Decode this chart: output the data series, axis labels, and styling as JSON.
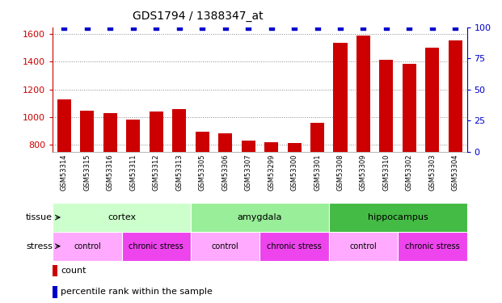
{
  "title": "GDS1794 / 1388347_at",
  "samples": [
    "GSM53314",
    "GSM53315",
    "GSM53316",
    "GSM53311",
    "GSM53312",
    "GSM53313",
    "GSM53305",
    "GSM53306",
    "GSM53307",
    "GSM53299",
    "GSM53300",
    "GSM53301",
    "GSM53308",
    "GSM53309",
    "GSM53310",
    "GSM53302",
    "GSM53303",
    "GSM53304"
  ],
  "counts": [
    1130,
    1045,
    1030,
    980,
    1040,
    1060,
    895,
    880,
    828,
    815,
    810,
    960,
    1535,
    1590,
    1415,
    1385,
    1500,
    1555
  ],
  "percentiles": [
    100,
    100,
    100,
    100,
    100,
    100,
    100,
    100,
    100,
    100,
    100,
    100,
    100,
    100,
    100,
    100,
    100,
    100
  ],
  "ylim_left": [
    750,
    1650
  ],
  "ylim_right": [
    0,
    100
  ],
  "yticks_left": [
    800,
    1000,
    1200,
    1400,
    1600
  ],
  "yticks_right": [
    0,
    25,
    50,
    75,
    100
  ],
  "bar_color": "#cc0000",
  "dot_color": "#0000cc",
  "tissue_colors": {
    "cortex": "#ccffcc",
    "amygdala": "#99ee99",
    "hippocampus": "#44bb44"
  },
  "tissue_groups": [
    {
      "label": "cortex",
      "start": 0,
      "end": 6
    },
    {
      "label": "amygdala",
      "start": 6,
      "end": 12
    },
    {
      "label": "hippocampus",
      "start": 12,
      "end": 18
    }
  ],
  "stress_colors": {
    "control": "#ffaaff",
    "chronic stress": "#ee44ee"
  },
  "stress_groups": [
    {
      "label": "control",
      "start": 0,
      "end": 3
    },
    {
      "label": "chronic stress",
      "start": 3,
      "end": 6
    },
    {
      "label": "control",
      "start": 6,
      "end": 9
    },
    {
      "label": "chronic stress",
      "start": 9,
      "end": 12
    },
    {
      "label": "control",
      "start": 12,
      "end": 15
    },
    {
      "label": "chronic stress",
      "start": 15,
      "end": 18
    }
  ],
  "left_axis_color": "#cc0000",
  "right_axis_color": "#0000cc",
  "bg_color": "#ffffff",
  "grid_color": "#888888",
  "dot_size": 25,
  "xlabel_bg": "#cccccc",
  "label_row_label_color": "#000000"
}
